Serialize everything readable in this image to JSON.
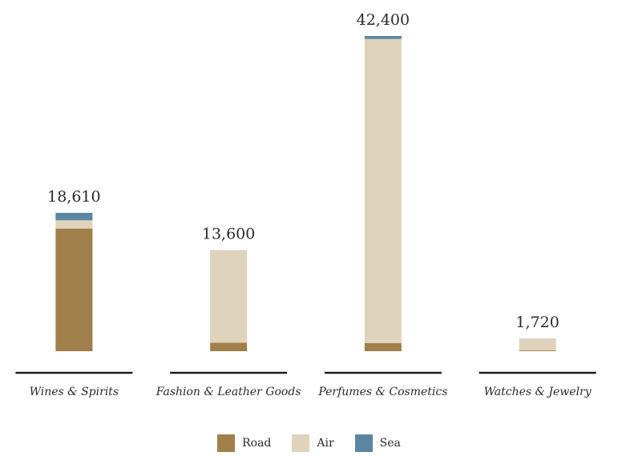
{
  "chart_data": {
    "type": "bar",
    "stacked": true,
    "categories": [
      "Wines & Spirits",
      "Fashion & Leather Goods",
      "Perfumes & Cosmetics",
      "Watches & Jewelry"
    ],
    "totals": [
      "18,610",
      "13,600",
      "42,400",
      "1,720"
    ],
    "series": [
      {
        "name": "Road",
        "color": "#a07f4a",
        "values": [
          16500,
          1150,
          1100,
          100
        ]
      },
      {
        "name": "Air",
        "color": "#e0d3bc",
        "values": [
          1110,
          12450,
          40900,
          1620
        ]
      },
      {
        "name": "Sea",
        "color": "#5a86a3",
        "values": [
          1000,
          0,
          400,
          0
        ]
      }
    ],
    "ylim": [
      0,
      42400
    ],
    "grid": false,
    "legend_position": "bottom"
  }
}
